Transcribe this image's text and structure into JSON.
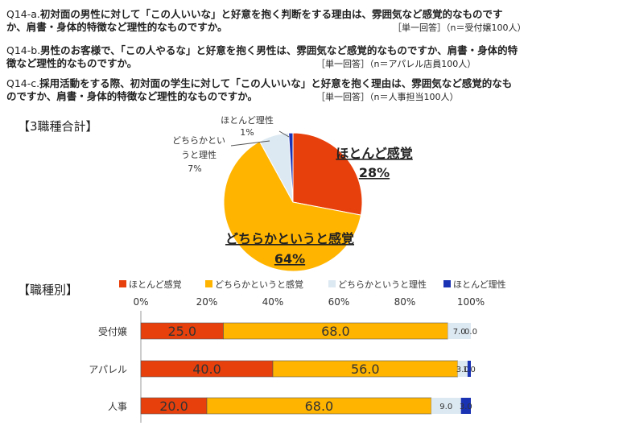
{
  "questions": [
    {
      "id": "Q14-a.",
      "line1": "初対面の男性に対して「この人いいな」と好意を抱く判断をする理由は、雰囲気など感覚的なものです",
      "line2": "か、肩書・身体的特徴など理性的なものですか。",
      "meta": "［単一回答］（n＝受付嬢100人）"
    },
    {
      "id": "Q14-b.",
      "line1": "男性のお客様で、「この人やるな」と好意を抱く男性は、雰囲気など感覚的なものですか、肩書・身体的特",
      "line2": "徴など理性的なものですか。",
      "meta": "［単一回答］（n＝アパレル店員100人）"
    },
    {
      "id": "Q14-c.",
      "line1": "採用活動をする際、初対面の学生に対して「この人いいな」と好意を抱く理由は、雰囲気など感覚的なも",
      "line2": "のですか、肩書・身体的特徴など理性的なものですか。",
      "meta": "［単一回答］（n＝人事担当100人）"
    }
  ],
  "chart_data": [
    {
      "type": "pie",
      "title": "【3職種合計】",
      "series": [
        {
          "name": "ほとんど感覚",
          "value": 28,
          "label": "28%",
          "color": "#e8400c"
        },
        {
          "name": "どちらかというと感覚",
          "value": 64,
          "label": "64%",
          "color": "#ffb400"
        },
        {
          "name": "どちらかというと理性",
          "value": 7,
          "label": "7%",
          "color": "#dde9f2"
        },
        {
          "name": "ほとんど理性",
          "value": 1,
          "label": "1%",
          "color": "#1a32b4"
        }
      ],
      "callouts": {
        "most_reason_line1": "ほとんど理性",
        "rather_reason_line1": "どちらかとい",
        "rather_reason_line2": "うと理性"
      }
    },
    {
      "type": "bar",
      "orientation": "horizontal",
      "stacked": true,
      "title": "【職種別】",
      "categories": [
        "受付嬢",
        "アパレル",
        "人事"
      ],
      "series": [
        {
          "name": "ほとんど感覚",
          "color": "#e8400c",
          "values": [
            25.0,
            40.0,
            20.0
          ],
          "labels": [
            "25.0",
            "40.0",
            "20.0"
          ]
        },
        {
          "name": "どちらかというと感覚",
          "color": "#ffb400",
          "values": [
            68.0,
            56.0,
            68.0
          ],
          "labels": [
            "68.0",
            "56.0",
            "68.0"
          ]
        },
        {
          "name": "どちらかというと理性",
          "color": "#dde9f2",
          "values": [
            7.0,
            3.0,
            9.0
          ],
          "labels": [
            "7.0",
            "3.0",
            "9.0"
          ]
        },
        {
          "name": "ほとんど理性",
          "color": "#1a32b4",
          "values": [
            0.0,
            1.0,
            3.0
          ],
          "labels": [
            "0.0",
            "1.0",
            "3.0"
          ]
        }
      ],
      "xticks": [
        "0%",
        "20%",
        "40%",
        "60%",
        "80%",
        "100%"
      ],
      "xlim": [
        0,
        100
      ],
      "grid": false,
      "legend_position": "top"
    }
  ]
}
